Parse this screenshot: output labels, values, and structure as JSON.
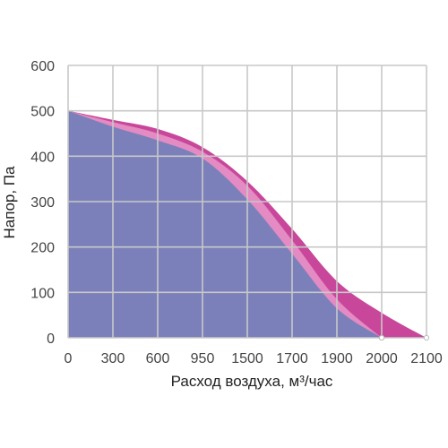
{
  "chart_data": {
    "type": "area",
    "xlabel": "Расход воздуха, м³/час",
    "ylabel": "Напор, Па",
    "categories": [
      "0",
      "300",
      "600",
      "950",
      "1500",
      "1700",
      "1900",
      "2000",
      "2100"
    ],
    "y_ticks": [
      0,
      100,
      200,
      300,
      400,
      500,
      600
    ],
    "ylim": [
      0,
      600
    ],
    "grid": true,
    "legend": "none",
    "colors": {
      "grid": "#c8c8c8",
      "axis_text": "#444444"
    },
    "series": [
      {
        "color": "#c8479a",
        "values": [
          500,
          480,
          460,
          420,
          345,
          240,
          125,
          55,
          0
        ]
      },
      {
        "color": "#e38bc2",
        "values": [
          500,
          475,
          450,
          410,
          335,
          215,
          85,
          0,
          null
        ]
      },
      {
        "color": "#7b80bb",
        "values": [
          500,
          465,
          435,
          395,
          305,
          185,
          65,
          0,
          null
        ]
      }
    ]
  }
}
